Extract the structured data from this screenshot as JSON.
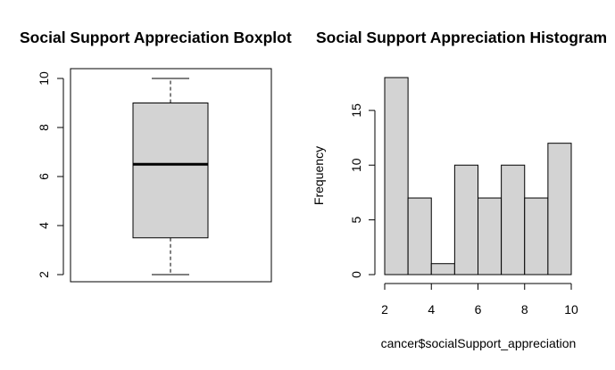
{
  "chart_data": [
    {
      "type": "box",
      "title": "Social Support Appreciation Boxplot",
      "xlabel": "",
      "ylabel": "",
      "ylim": [
        2,
        10
      ],
      "yticks": [
        2,
        4,
        6,
        8,
        10
      ],
      "box": {
        "min": 2,
        "q1": 3.5,
        "median": 6.5,
        "q3": 9,
        "max": 10
      },
      "fill": "#d3d3d3",
      "grid": false
    },
    {
      "type": "bar",
      "subtype": "histogram",
      "title": "Social Support Appreciation Histogram",
      "xlabel": "cancer$socialSupport_appreciation",
      "ylabel": "Frequency",
      "bins": [
        {
          "from": 2,
          "to": 3,
          "count": 18
        },
        {
          "from": 3,
          "to": 4,
          "count": 7
        },
        {
          "from": 4,
          "to": 5,
          "count": 1
        },
        {
          "from": 5,
          "to": 6,
          "count": 10
        },
        {
          "from": 6,
          "to": 7,
          "count": 7
        },
        {
          "from": 7,
          "to": 8,
          "count": 10
        },
        {
          "from": 8,
          "to": 9,
          "count": 7
        },
        {
          "from": 9,
          "to": 10,
          "count": 12
        }
      ],
      "xlim": [
        2,
        10
      ],
      "ylim": [
        0,
        18
      ],
      "xticks": [
        2,
        4,
        6,
        8,
        10
      ],
      "yticks": [
        0,
        5,
        10,
        15
      ],
      "fill": "#d3d3d3",
      "grid": false
    }
  ]
}
